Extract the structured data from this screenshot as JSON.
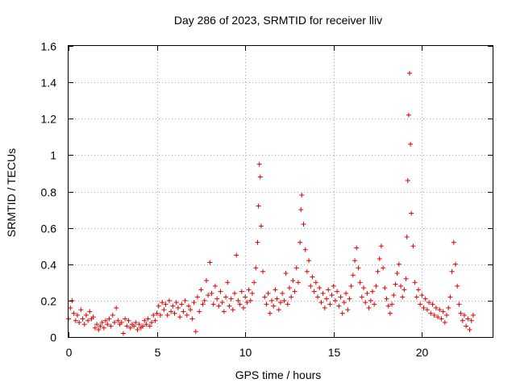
{
  "chart_data": {
    "type": "scatter",
    "title": "Day 286 of 2023, SRMTID for receiver lliv",
    "xlabel": "GPS time / hours",
    "ylabel": "SRMTID / TECUs",
    "xlim": [
      0,
      24
    ],
    "ylim": [
      0,
      1.6
    ],
    "xticks": [
      0,
      5,
      10,
      15,
      20
    ],
    "xtick_labels": [
      "0",
      "5",
      "10",
      "15",
      "20"
    ],
    "yticks": [
      0,
      0.2,
      0.4,
      0.6,
      0.8,
      1.0,
      1.2,
      1.4,
      1.6
    ],
    "ytick_labels": [
      "0",
      "0.2",
      "0.4",
      "0.6",
      "0.8",
      "1",
      "1.2",
      "1.4",
      "1.6"
    ],
    "grid": true,
    "marker": "+",
    "color": "#e00000",
    "series": [
      {
        "name": "SRMTID",
        "points": [
          [
            0.0,
            0.1
          ],
          [
            0.1,
            0.16
          ],
          [
            0.2,
            0.2
          ],
          [
            0.3,
            0.13
          ],
          [
            0.4,
            0.09
          ],
          [
            0.5,
            0.12
          ],
          [
            0.6,
            0.08
          ],
          [
            0.7,
            0.15
          ],
          [
            0.8,
            0.1
          ],
          [
            0.9,
            0.07
          ],
          [
            1.0,
            0.12
          ],
          [
            1.1,
            0.09
          ],
          [
            1.2,
            0.14
          ],
          [
            1.3,
            0.1
          ],
          [
            1.4,
            0.11
          ],
          [
            1.5,
            0.05
          ],
          [
            1.6,
            0.07
          ],
          [
            1.7,
            0.04
          ],
          [
            1.8,
            0.06
          ],
          [
            1.9,
            0.08
          ],
          [
            2.0,
            0.05
          ],
          [
            2.1,
            0.09
          ],
          [
            2.2,
            0.07
          ],
          [
            2.3,
            0.1
          ],
          [
            2.4,
            0.06
          ],
          [
            2.5,
            0.12
          ],
          [
            2.6,
            0.08
          ],
          [
            2.7,
            0.16
          ],
          [
            2.8,
            0.09
          ],
          [
            2.9,
            0.07
          ],
          [
            3.0,
            0.08
          ],
          [
            3.1,
            0.02
          ],
          [
            3.2,
            0.1
          ],
          [
            3.3,
            0.06
          ],
          [
            3.4,
            0.09
          ],
          [
            3.5,
            0.05
          ],
          [
            3.6,
            0.07
          ],
          [
            3.7,
            0.06
          ],
          [
            3.8,
            0.08
          ],
          [
            3.9,
            0.04
          ],
          [
            4.0,
            0.07
          ],
          [
            4.1,
            0.05
          ],
          [
            4.2,
            0.06
          ],
          [
            4.3,
            0.09
          ],
          [
            4.4,
            0.07
          ],
          [
            4.5,
            0.1
          ],
          [
            4.6,
            0.06
          ],
          [
            4.7,
            0.08
          ],
          [
            4.8,
            0.12
          ],
          [
            4.9,
            0.09
          ],
          [
            5.0,
            0.13
          ],
          [
            5.1,
            0.17
          ],
          [
            5.2,
            0.12
          ],
          [
            5.3,
            0.19
          ],
          [
            5.4,
            0.15
          ],
          [
            5.5,
            0.18
          ],
          [
            5.6,
            0.12
          ],
          [
            5.7,
            0.2
          ],
          [
            5.8,
            0.14
          ],
          [
            5.9,
            0.17
          ],
          [
            6.0,
            0.13
          ],
          [
            6.1,
            0.19
          ],
          [
            6.2,
            0.16
          ],
          [
            6.3,
            0.11
          ],
          [
            6.4,
            0.18
          ],
          [
            6.5,
            0.14
          ],
          [
            6.6,
            0.2
          ],
          [
            6.7,
            0.12
          ],
          [
            6.8,
            0.17
          ],
          [
            6.9,
            0.15
          ],
          [
            7.0,
            0.1
          ],
          [
            7.1,
            0.19
          ],
          [
            7.2,
            0.03
          ],
          [
            7.3,
            0.22
          ],
          [
            7.4,
            0.14
          ],
          [
            7.5,
            0.26
          ],
          [
            7.6,
            0.18
          ],
          [
            7.7,
            0.2
          ],
          [
            7.8,
            0.31
          ],
          [
            7.9,
            0.23
          ],
          [
            8.0,
            0.41
          ],
          [
            8.1,
            0.24
          ],
          [
            8.2,
            0.18
          ],
          [
            8.3,
            0.28
          ],
          [
            8.4,
            0.21
          ],
          [
            8.5,
            0.17
          ],
          [
            8.6,
            0.25
          ],
          [
            8.7,
            0.19
          ],
          [
            8.8,
            0.14
          ],
          [
            8.9,
            0.22
          ],
          [
            9.0,
            0.3
          ],
          [
            9.1,
            0.17
          ],
          [
            9.2,
            0.21
          ],
          [
            9.3,
            0.15
          ],
          [
            9.4,
            0.24
          ],
          [
            9.5,
            0.45
          ],
          [
            9.6,
            0.2
          ],
          [
            9.7,
            0.18
          ],
          [
            9.8,
            0.25
          ],
          [
            9.9,
            0.16
          ],
          [
            10.0,
            0.22
          ],
          [
            10.1,
            0.19
          ],
          [
            10.2,
            0.26
          ],
          [
            10.3,
            0.2
          ],
          [
            10.4,
            0.24
          ],
          [
            10.5,
            0.3
          ],
          [
            10.6,
            0.38
          ],
          [
            10.7,
            0.52
          ],
          [
            10.75,
            0.72
          ],
          [
            10.8,
            0.95
          ],
          [
            10.85,
            0.88
          ],
          [
            10.9,
            0.61
          ],
          [
            11.0,
            0.36
          ],
          [
            11.1,
            0.22
          ],
          [
            11.2,
            0.18
          ],
          [
            11.3,
            0.24
          ],
          [
            11.4,
            0.13
          ],
          [
            11.5,
            0.2
          ],
          [
            11.6,
            0.17
          ],
          [
            11.7,
            0.26
          ],
          [
            11.8,
            0.21
          ],
          [
            11.9,
            0.15
          ],
          [
            12.0,
            0.19
          ],
          [
            12.1,
            0.24
          ],
          [
            12.2,
            0.2
          ],
          [
            12.3,
            0.35
          ],
          [
            12.4,
            0.18
          ],
          [
            12.5,
            0.27
          ],
          [
            12.6,
            0.22
          ],
          [
            12.7,
            0.31
          ],
          [
            12.8,
            0.25
          ],
          [
            12.9,
            0.38
          ],
          [
            13.0,
            0.3
          ],
          [
            13.1,
            0.52
          ],
          [
            13.15,
            0.7
          ],
          [
            13.2,
            0.78
          ],
          [
            13.3,
            0.62
          ],
          [
            13.4,
            0.48
          ],
          [
            13.5,
            0.36
          ],
          [
            13.6,
            0.42
          ],
          [
            13.7,
            0.28
          ],
          [
            13.8,
            0.33
          ],
          [
            13.9,
            0.25
          ],
          [
            14.0,
            0.3
          ],
          [
            14.1,
            0.22
          ],
          [
            14.2,
            0.27
          ],
          [
            14.3,
            0.19
          ],
          [
            14.4,
            0.24
          ],
          [
            14.5,
            0.16
          ],
          [
            14.6,
            0.21
          ],
          [
            14.7,
            0.26
          ],
          [
            14.8,
            0.18
          ],
          [
            14.9,
            0.23
          ],
          [
            15.0,
            0.28
          ],
          [
            15.1,
            0.2
          ],
          [
            15.2,
            0.25
          ],
          [
            15.3,
            0.17
          ],
          [
            15.4,
            0.22
          ],
          [
            15.5,
            0.13
          ],
          [
            15.6,
            0.19
          ],
          [
            15.7,
            0.24
          ],
          [
            15.8,
            0.15
          ],
          [
            15.9,
            0.21
          ],
          [
            16.0,
            0.28
          ],
          [
            16.1,
            0.34
          ],
          [
            16.2,
            0.42
          ],
          [
            16.3,
            0.49
          ],
          [
            16.4,
            0.38
          ],
          [
            16.5,
            0.3
          ],
          [
            16.6,
            0.22
          ],
          [
            16.7,
            0.27
          ],
          [
            16.8,
            0.19
          ],
          [
            16.9,
            0.24
          ],
          [
            17.0,
            0.16
          ],
          [
            17.1,
            0.2
          ],
          [
            17.2,
            0.25
          ],
          [
            17.3,
            0.18
          ],
          [
            17.4,
            0.28
          ],
          [
            17.5,
            0.36
          ],
          [
            17.6,
            0.43
          ],
          [
            17.7,
            0.5
          ],
          [
            17.8,
            0.38
          ],
          [
            17.9,
            0.27
          ],
          [
            18.0,
            0.21
          ],
          [
            18.1,
            0.17
          ],
          [
            18.2,
            0.13
          ],
          [
            18.3,
            0.18
          ],
          [
            18.4,
            0.23
          ],
          [
            18.5,
            0.29
          ],
          [
            18.6,
            0.35
          ],
          [
            18.7,
            0.4
          ],
          [
            18.8,
            0.28
          ],
          [
            18.9,
            0.22
          ],
          [
            19.0,
            0.26
          ],
          [
            19.1,
            0.32
          ],
          [
            19.15,
            0.55
          ],
          [
            19.2,
            0.86
          ],
          [
            19.25,
            1.22
          ],
          [
            19.3,
            1.45
          ],
          [
            19.35,
            1.06
          ],
          [
            19.4,
            0.68
          ],
          [
            19.5,
            0.5
          ],
          [
            19.6,
            0.3
          ],
          [
            19.7,
            0.22
          ],
          [
            19.8,
            0.26
          ],
          [
            19.9,
            0.18
          ],
          [
            20.0,
            0.23
          ],
          [
            20.1,
            0.16
          ],
          [
            20.2,
            0.21
          ],
          [
            20.3,
            0.15
          ],
          [
            20.4,
            0.19
          ],
          [
            20.5,
            0.13
          ],
          [
            20.6,
            0.18
          ],
          [
            20.7,
            0.12
          ],
          [
            20.8,
            0.16
          ],
          [
            20.9,
            0.11
          ],
          [
            21.0,
            0.15
          ],
          [
            21.1,
            0.1
          ],
          [
            21.2,
            0.14
          ],
          [
            21.3,
            0.08
          ],
          [
            21.4,
            0.12
          ],
          [
            21.5,
            0.16
          ],
          [
            21.6,
            0.22
          ],
          [
            21.7,
            0.36
          ],
          [
            21.8,
            0.52
          ],
          [
            21.9,
            0.4
          ],
          [
            22.0,
            0.28
          ],
          [
            22.1,
            0.18
          ],
          [
            22.2,
            0.13
          ],
          [
            22.3,
            0.09
          ],
          [
            22.4,
            0.12
          ],
          [
            22.5,
            0.06
          ],
          [
            22.6,
            0.1
          ],
          [
            22.7,
            0.04
          ],
          [
            22.8,
            0.09
          ],
          [
            22.9,
            0.12
          ]
        ]
      }
    ]
  }
}
